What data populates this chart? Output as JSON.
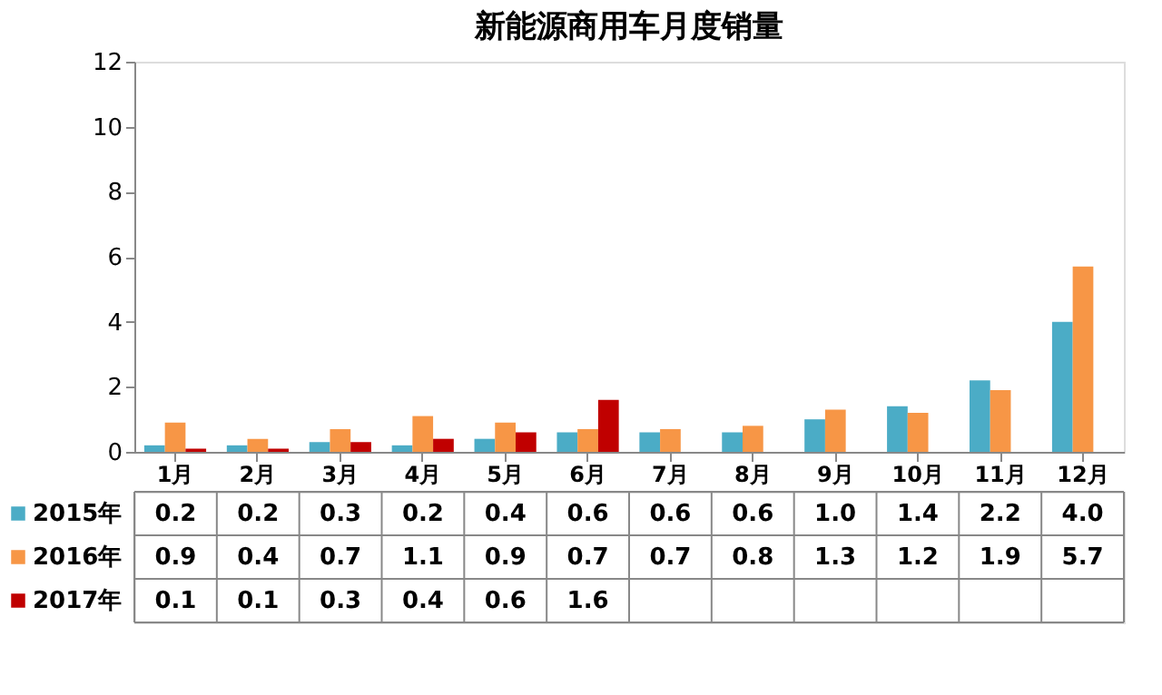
{
  "chart_data": {
    "type": "bar",
    "title": "新能源商用车月度销量",
    "categories": [
      "1月",
      "2月",
      "3月",
      "4月",
      "5月",
      "6月",
      "7月",
      "8月",
      "9月",
      "10月",
      "11月",
      "12月"
    ],
    "series": [
      {
        "name": "2015年",
        "color": "#4bacc6",
        "values": [
          0.2,
          0.2,
          0.3,
          0.2,
          0.4,
          0.6,
          0.6,
          0.6,
          1.0,
          1.4,
          2.2,
          4.0
        ],
        "value_labels": [
          "0.2",
          "0.2",
          "0.3",
          "0.2",
          "0.4",
          "0.6",
          "0.6",
          "0.6",
          "1.0",
          "1.4",
          "2.2",
          "4.0"
        ]
      },
      {
        "name": "2016年",
        "color": "#f79646",
        "values": [
          0.9,
          0.4,
          0.7,
          1.1,
          0.9,
          0.7,
          0.7,
          0.8,
          1.3,
          1.2,
          1.9,
          5.7
        ],
        "value_labels": [
          "0.9",
          "0.4",
          "0.7",
          "1.1",
          "0.9",
          "0.7",
          "0.7",
          "0.8",
          "1.3",
          "1.2",
          "1.9",
          "5.7"
        ]
      },
      {
        "name": "2017年",
        "color": "#c00000",
        "values": [
          0.1,
          0.1,
          0.3,
          0.4,
          0.6,
          1.6,
          null,
          null,
          null,
          null,
          null,
          null
        ],
        "value_labels": [
          "0.1",
          "0.1",
          "0.3",
          "0.4",
          "0.6",
          "1.6",
          null,
          null,
          null,
          null,
          null,
          null
        ]
      }
    ],
    "ylim": [
      0,
      12
    ],
    "yticks": [
      0,
      2,
      4,
      6,
      8,
      10,
      12
    ],
    "grid": false,
    "legend": "bottom left"
  }
}
